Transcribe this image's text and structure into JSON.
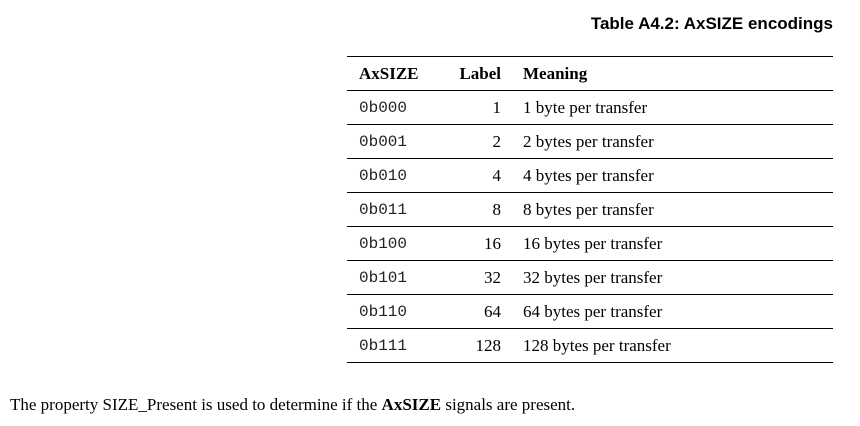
{
  "caption": "Table A4.2: AxSIZE encodings",
  "table": {
    "headers": [
      "AxSIZE",
      "Label",
      "Meaning"
    ],
    "rows": [
      {
        "code": "0b000",
        "label": "1",
        "meaning": "1 byte per transfer"
      },
      {
        "code": "0b001",
        "label": "2",
        "meaning": "2 bytes per transfer"
      },
      {
        "code": "0b010",
        "label": "4",
        "meaning": "4 bytes per transfer"
      },
      {
        "code": "0b011",
        "label": "8",
        "meaning": "8 bytes per transfer"
      },
      {
        "code": "0b100",
        "label": "16",
        "meaning": "16 bytes per transfer"
      },
      {
        "code": "0b101",
        "label": "32",
        "meaning": "32 bytes per transfer"
      },
      {
        "code": "0b110",
        "label": "64",
        "meaning": "64 bytes per transfer"
      },
      {
        "code": "0b111",
        "label": "128",
        "meaning": "128 bytes per transfer"
      }
    ]
  },
  "paragraph": {
    "before": "The property SIZE_Present is used to determine if the ",
    "bold": "AxSIZE",
    "after": " signals are present."
  }
}
